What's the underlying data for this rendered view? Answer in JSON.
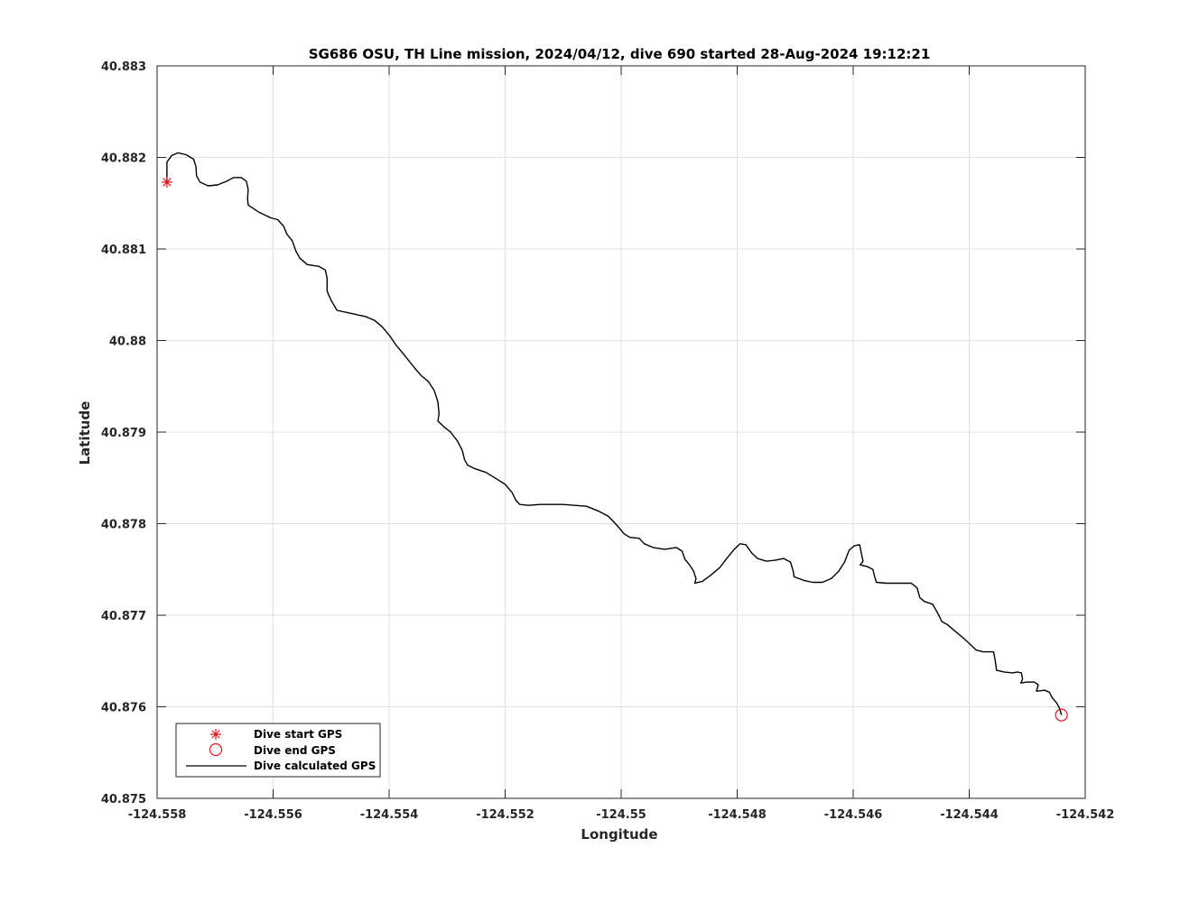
{
  "chart_data": {
    "type": "line",
    "title": "SG686 OSU, TH Line mission, 2024/04/12, dive 690 started 28-Aug-2024 19:12:21",
    "xlabel": "Longitude",
    "ylabel": "Latitude",
    "xlim": [
      -124.558,
      -124.542
    ],
    "ylim": [
      40.875,
      40.883
    ],
    "xticks": [
      -124.558,
      -124.556,
      -124.554,
      -124.552,
      -124.55,
      -124.548,
      -124.546,
      -124.544,
      -124.542
    ],
    "xtick_labels": [
      "-124.558",
      "-124.556",
      "-124.554",
      "-124.552",
      "-124.55",
      "-124.548",
      "-124.546",
      "-124.544",
      "-124.542"
    ],
    "yticks": [
      40.875,
      40.876,
      40.877,
      40.878,
      40.879,
      40.88,
      40.881,
      40.882,
      40.883
    ],
    "ytick_labels": [
      "40.875",
      "40.876",
      "40.877",
      "40.878",
      "40.879",
      "40.88",
      "40.881",
      "40.882",
      "40.883"
    ],
    "grid": true,
    "legend_position": "bottom-left",
    "series": [
      {
        "name": "Dive start GPS",
        "marker": "asterisk",
        "color": "#e0141e",
        "points": [
          [
            -124.55783,
            40.88173
          ]
        ]
      },
      {
        "name": "Dive end GPS",
        "marker": "circle",
        "color": "#e0141e",
        "points": [
          [
            -124.54241,
            40.87591
          ]
        ]
      },
      {
        "name": "Dive calculated GPS",
        "marker": "line",
        "color": "#000000",
        "points": [
          [
            -124.55783,
            40.88173
          ],
          [
            -124.55783,
            40.88195
          ],
          [
            -124.55775,
            40.88202
          ],
          [
            -124.55764,
            40.88205
          ],
          [
            -124.5575,
            40.88203
          ],
          [
            -124.55737,
            40.88198
          ],
          [
            -124.55733,
            40.8819
          ],
          [
            -124.55732,
            40.8818
          ],
          [
            -124.55726,
            40.88173
          ],
          [
            -124.55712,
            40.88169
          ],
          [
            -124.55696,
            40.8817
          ],
          [
            -124.5568,
            40.88174
          ],
          [
            -124.55668,
            40.88178
          ],
          [
            -124.55655,
            40.88178
          ],
          [
            -124.55646,
            40.88174
          ],
          [
            -124.55643,
            40.88165
          ],
          [
            -124.55644,
            40.88155
          ],
          [
            -124.55643,
            40.88148
          ],
          [
            -124.55624,
            40.8814
          ],
          [
            -124.55604,
            40.88134
          ],
          [
            -124.55592,
            40.88132
          ],
          [
            -124.55582,
            40.88125
          ],
          [
            -124.55576,
            40.88116
          ],
          [
            -124.55567,
            40.88109
          ],
          [
            -124.55561,
            40.88098
          ],
          [
            -124.55554,
            40.8809
          ],
          [
            -124.55541,
            40.88083
          ],
          [
            -124.55521,
            40.88081
          ],
          [
            -124.5551,
            40.88077
          ],
          [
            -124.55507,
            40.88068
          ],
          [
            -124.55507,
            40.88054
          ],
          [
            -124.555,
            40.88044
          ],
          [
            -124.5549,
            40.88033
          ],
          [
            -124.55461,
            40.88029
          ],
          [
            -124.5544,
            40.88026
          ],
          [
            -124.55425,
            40.88022
          ],
          [
            -124.55412,
            40.88015
          ],
          [
            -124.554,
            40.88006
          ],
          [
            -124.55388,
            40.87995
          ],
          [
            -124.55375,
            40.87985
          ],
          [
            -124.55356,
            40.8797
          ],
          [
            -124.55345,
            40.87962
          ],
          [
            -124.55332,
            40.87955
          ],
          [
            -124.55322,
            40.87945
          ],
          [
            -124.55316,
            40.87933
          ],
          [
            -124.55314,
            40.8792
          ],
          [
            -124.55316,
            40.87912
          ],
          [
            -124.55306,
            40.87906
          ],
          [
            -124.55294,
            40.879
          ],
          [
            -124.55282,
            40.8789
          ],
          [
            -124.55274,
            40.8788
          ],
          [
            -124.5527,
            40.8787
          ],
          [
            -124.55265,
            40.87864
          ],
          [
            -124.55252,
            40.8786
          ],
          [
            -124.55233,
            40.87856
          ],
          [
            -124.55215,
            40.87849
          ],
          [
            -124.552,
            40.87843
          ],
          [
            -124.55188,
            40.87834
          ],
          [
            -124.55182,
            40.87826
          ],
          [
            -124.55175,
            40.87821
          ],
          [
            -124.5516,
            40.8782
          ],
          [
            -124.5514,
            40.87821
          ],
          [
            -124.551,
            40.87821
          ],
          [
            -124.5506,
            40.87819
          ],
          [
            -124.5504,
            40.87814
          ],
          [
            -124.55022,
            40.87808
          ],
          [
            -124.55007,
            40.87798
          ],
          [
            -124.54995,
            40.87789
          ],
          [
            -124.54985,
            40.87785
          ],
          [
            -124.54969,
            40.87784
          ],
          [
            -124.5496,
            40.87778
          ],
          [
            -124.54945,
            40.87774
          ],
          [
            -124.54925,
            40.87772
          ],
          [
            -124.54905,
            40.87774
          ],
          [
            -124.54895,
            40.8777
          ],
          [
            -124.5489,
            40.87761
          ],
          [
            -124.54882,
            40.87755
          ],
          [
            -124.54875,
            40.87748
          ],
          [
            -124.54871,
            40.8774
          ],
          [
            -124.54873,
            40.87735
          ],
          [
            -124.5486,
            40.87737
          ],
          [
            -124.54845,
            40.87744
          ],
          [
            -124.5483,
            40.87752
          ],
          [
            -124.54818,
            40.87762
          ],
          [
            -124.54805,
            40.87772
          ],
          [
            -124.54795,
            40.87778
          ],
          [
            -124.54785,
            40.87777
          ],
          [
            -124.54775,
            40.87768
          ],
          [
            -124.54765,
            40.87762
          ],
          [
            -124.5475,
            40.87759
          ],
          [
            -124.54735,
            40.8776
          ],
          [
            -124.5472,
            40.87762
          ],
          [
            -124.54708,
            40.87758
          ],
          [
            -124.54703,
            40.87747
          ],
          [
            -124.54702,
            40.87742
          ],
          [
            -124.54685,
            40.87738
          ],
          [
            -124.5467,
            40.87736
          ],
          [
            -124.54653,
            40.87736
          ],
          [
            -124.54638,
            40.8774
          ],
          [
            -124.54625,
            40.87748
          ],
          [
            -124.54615,
            40.87758
          ],
          [
            -124.54607,
            40.87771
          ],
          [
            -124.54598,
            40.87776
          ],
          [
            -124.54589,
            40.87777
          ],
          [
            -124.54586,
            40.87768
          ],
          [
            -124.54583,
            40.87759
          ],
          [
            -124.54588,
            40.87755
          ],
          [
            -124.54575,
            40.87753
          ],
          [
            -124.54566,
            40.8775
          ],
          [
            -124.54563,
            40.87742
          ],
          [
            -124.5456,
            40.87736
          ],
          [
            -124.54543,
            40.87735
          ],
          [
            -124.5452,
            40.87735
          ],
          [
            -124.545,
            40.87735
          ],
          [
            -124.5449,
            40.8773
          ],
          [
            -124.54485,
            40.87719
          ],
          [
            -124.54477,
            40.87715
          ],
          [
            -124.54463,
            40.87712
          ],
          [
            -124.54455,
            40.87703
          ],
          [
            -124.54447,
            40.87693
          ],
          [
            -124.54438,
            40.8769
          ],
          [
            -124.54425,
            40.87683
          ],
          [
            -124.5441,
            40.87675
          ],
          [
            -124.54398,
            40.87668
          ],
          [
            -124.54388,
            40.87662
          ],
          [
            -124.54376,
            40.8766
          ],
          [
            -124.54358,
            40.8766
          ],
          [
            -124.54355,
            40.8765
          ],
          [
            -124.54353,
            40.8764
          ],
          [
            -124.5434,
            40.87638
          ],
          [
            -124.54325,
            40.87637
          ],
          [
            -124.54317,
            40.87638
          ],
          [
            -124.5431,
            40.87637
          ],
          [
            -124.54308,
            40.8763
          ],
          [
            -124.54311,
            40.87626
          ],
          [
            -124.543,
            40.87627
          ],
          [
            -124.54288,
            40.87627
          ],
          [
            -124.54281,
            40.87624
          ],
          [
            -124.54284,
            40.87617
          ],
          [
            -124.5427,
            40.87618
          ],
          [
            -124.54262,
            40.87616
          ],
          [
            -124.54257,
            40.8761
          ],
          [
            -124.54249,
            40.87604
          ],
          [
            -124.54244,
            40.87598
          ],
          [
            -124.54241,
            40.87591
          ]
        ]
      }
    ]
  }
}
